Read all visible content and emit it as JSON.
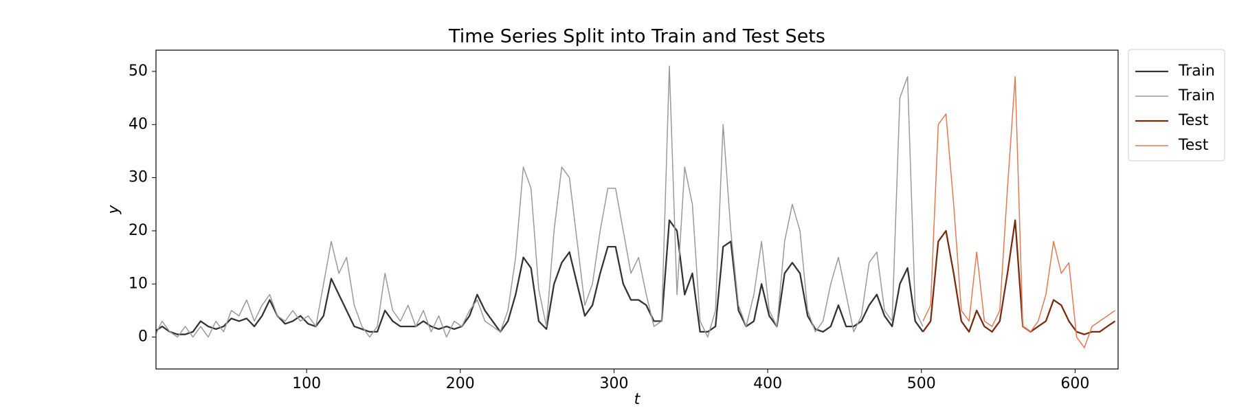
{
  "chart_data": {
    "type": "line",
    "title": "Time Series Split into Train and Test Sets",
    "xlabel": "t",
    "ylabel": "y",
    "xlim": [
      2,
      628
    ],
    "ylim": [
      -6,
      54
    ],
    "xticks": [
      100,
      200,
      300,
      400,
      500,
      600
    ],
    "yticks": [
      0,
      10,
      20,
      30,
      40,
      50
    ],
    "legend": "outside-upper-right",
    "series": [
      {
        "name": "Train",
        "color": "#333333",
        "width": 2.3,
        "x": [
          1,
          6,
          11,
          16,
          21,
          26,
          31,
          36,
          41,
          46,
          51,
          56,
          61,
          66,
          71,
          76,
          81,
          86,
          91,
          96,
          101,
          106,
          111,
          116,
          121,
          126,
          131,
          136,
          141,
          146,
          151,
          156,
          161,
          166,
          171,
          176,
          181,
          186,
          191,
          196,
          201,
          206,
          211,
          216,
          221,
          226,
          231,
          236,
          241,
          246,
          251,
          256,
          261,
          266,
          271,
          276,
          281,
          286,
          291,
          296,
          301,
          306,
          311,
          316,
          321,
          326,
          331,
          336,
          341,
          346,
          351,
          356,
          361,
          366,
          371,
          376,
          381,
          386,
          391,
          396,
          401,
          406,
          411,
          416,
          421,
          426,
          431,
          436,
          441,
          446,
          451,
          456,
          461,
          466,
          471,
          476,
          481,
          486,
          491,
          496,
          501
        ],
        "values": [
          1,
          2,
          1,
          0.5,
          0.5,
          1,
          3,
          2,
          1.5,
          2,
          3.5,
          3,
          3.5,
          2,
          4,
          7,
          4,
          2.5,
          3,
          4,
          2.5,
          2,
          4,
          11,
          8,
          5,
          2,
          1.5,
          1,
          1,
          5,
          3,
          2,
          2,
          2,
          3,
          2,
          1.5,
          2,
          1.5,
          2,
          4,
          8,
          5,
          3,
          1,
          3,
          8,
          15,
          13,
          3,
          1.5,
          10,
          14,
          16,
          10,
          4,
          6,
          12,
          17,
          17,
          10,
          7,
          7,
          6,
          3,
          3,
          22,
          20,
          8,
          12,
          1,
          1,
          2,
          17,
          18,
          5,
          2,
          3,
          10,
          4,
          2,
          12,
          14,
          12,
          4,
          1.5,
          1,
          2,
          6,
          2,
          2,
          3,
          6,
          8,
          4,
          2,
          10,
          13,
          3,
          1
        ]
      },
      {
        "name": "Train",
        "color": "#999999",
        "width": 1.5,
        "x": [
          1,
          6,
          11,
          16,
          21,
          26,
          31,
          36,
          41,
          46,
          51,
          56,
          61,
          66,
          71,
          76,
          81,
          86,
          91,
          96,
          101,
          106,
          111,
          116,
          121,
          126,
          131,
          136,
          141,
          146,
          151,
          156,
          161,
          166,
          171,
          176,
          181,
          186,
          191,
          196,
          201,
          206,
          211,
          216,
          221,
          226,
          231,
          236,
          241,
          246,
          251,
          256,
          261,
          266,
          271,
          276,
          281,
          286,
          291,
          296,
          301,
          306,
          311,
          316,
          321,
          326,
          331,
          336,
          341,
          346,
          351,
          356,
          361,
          366,
          371,
          376,
          381,
          386,
          391,
          396,
          401,
          406,
          411,
          416,
          421,
          426,
          431,
          436,
          441,
          446,
          451,
          456,
          461,
          466,
          471,
          476,
          481,
          486,
          491,
          496,
          501
        ],
        "values": [
          0,
          3,
          1,
          0,
          2,
          0,
          2,
          0,
          3,
          1,
          5,
          4,
          7,
          3,
          6,
          8,
          4,
          3,
          5,
          3,
          4,
          2,
          10,
          18,
          12,
          15,
          6,
          2,
          0,
          2,
          12,
          5,
          3,
          6,
          2,
          5,
          1,
          4,
          0,
          3,
          2,
          5,
          7,
          3,
          2,
          1,
          5,
          15,
          32,
          28,
          9,
          2,
          20,
          32,
          30,
          18,
          6,
          10,
          20,
          28,
          28,
          20,
          12,
          15,
          8,
          2,
          3,
          51,
          8,
          32,
          25,
          3,
          0,
          5,
          40,
          20,
          6,
          2,
          8,
          18,
          5,
          2,
          18,
          25,
          20,
          5,
          1,
          3,
          10,
          15,
          8,
          1,
          4,
          14,
          16,
          5,
          3,
          45,
          49,
          5,
          2
        ]
      },
      {
        "name": "Test",
        "color": "#7a2a10",
        "width": 2.3,
        "x": [
          501,
          506,
          511,
          516,
          521,
          526,
          531,
          536,
          541,
          546,
          551,
          556,
          561,
          566,
          571,
          576,
          581,
          586,
          591,
          596,
          601,
          606,
          611,
          616,
          621,
          626
        ],
        "values": [
          1,
          3,
          18,
          20,
          12,
          3,
          1,
          5,
          2,
          1,
          3,
          12,
          22,
          2,
          1,
          2,
          3,
          7,
          6,
          3,
          1,
          0.5,
          1,
          1,
          2,
          3
        ]
      },
      {
        "name": "Test",
        "color": "#e07a50",
        "width": 1.5,
        "x": [
          501,
          506,
          511,
          516,
          521,
          526,
          531,
          536,
          541,
          546,
          551,
          556,
          561,
          566,
          571,
          576,
          581,
          586,
          591,
          596,
          601,
          606,
          611,
          616,
          621,
          626
        ],
        "values": [
          3,
          6,
          40,
          42,
          25,
          5,
          3,
          16,
          3,
          2,
          5,
          28,
          49,
          2,
          1,
          3,
          8,
          18,
          12,
          14,
          0,
          -2,
          2,
          3,
          4,
          5
        ]
      }
    ]
  }
}
